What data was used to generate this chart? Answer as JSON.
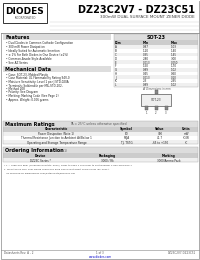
{
  "title_main": "DZ23C2V7 - DZ23C51",
  "subtitle": "300mW DUAL SURFACE MOUNT ZENER DIODE",
  "logo_text": "DIODES",
  "logo_sub": "INCORPORATED",
  "bg_color": "#ffffff",
  "features_title": "Features",
  "features": [
    "Dual Diodes in Common-Cathode Configuration",
    "300 mW Power Dissipation",
    "Ideally Suited for Automatic Insertion",
    "± 1% For Both Diodes in One Device (±2%)",
    "Common-Anode Style Available",
    "See AZ Series"
  ],
  "mech_title": "Mechanical Data",
  "mech_items": [
    "Case: SOT-23, Molded Plastic",
    "Case Material: UL Flammability Rating 94V-0",
    "Moisture Sensitivity: Level 1 per J-STD-020A",
    "Terminals: Solderable per MIL-STD-202,",
    "Method 208",
    "Polarity: See Diagram",
    "Marking: Marking Code (See Page 2)",
    "Approx. Weight: 0.006 grams"
  ],
  "ratings_title": "Maximum Ratings",
  "ratings_note": "TA = 25°C unless otherwise specified",
  "ratings_headers": [
    "Characteristic",
    "Symbol",
    "Value",
    "Units"
  ],
  "ratings_rows": [
    [
      "Power Dissipation (Note 1)",
      "PD",
      "300",
      "mW"
    ],
    [
      "Thermal Resistance Junction to Ambient At/Below 1",
      "RθJA",
      "41.7",
      "°C/W"
    ],
    [
      "Operating and Storage Temperature Range",
      "TJ, TSTG",
      "-65 to +150",
      "°C"
    ]
  ],
  "ordering_title": "Ordering Information",
  "ordering_note": "(Note 1)",
  "ordering_headers": [
    "Device",
    "Packaging",
    "Marking"
  ],
  "ordering_rows": [
    [
      "DZ23C Series *",
      "3000 / Rk",
      "3000/Ammo Pack"
    ]
  ],
  "table_title": "SOT-23",
  "table_headers": [
    "Dim",
    "Min",
    "Max"
  ],
  "table_rows": [
    [
      "A",
      "0.87",
      "1.03"
    ],
    [
      "B",
      "1.20",
      "1.40"
    ],
    [
      "C",
      "0.35",
      "1.45"
    ],
    [
      "D",
      "2.80",
      "3.00"
    ],
    [
      "E",
      "0.013",
      "0.050"
    ],
    [
      "F",
      "1.50",
      "1.70"
    ],
    [
      "G",
      "0.89",
      "1.02"
    ],
    [
      "H",
      "0.45",
      "0.60"
    ],
    [
      "J",
      "0.013",
      "0.10"
    ],
    [
      "K",
      "2.3",
      "2.65"
    ],
    [
      "L",
      "0.89",
      "1.02"
    ]
  ],
  "table_note": "All Dimensions in mm",
  "footer_left": "Datasheets Rev. A - 2",
  "footer_mid": "1 of 3",
  "footer_right": "DZ23C2V7-DZ23C51",
  "footer_url": "www.diodes.com",
  "note1": "* T = Tape and Reel (Minimum quantity: 3000). Refer to Page 4 and refer to Part Number 1-800-4DIODES-1",
  "note2": "1. Mounted on FR4, PCB, Board commend area pad layout effort comes from IPC-2221A",
  "note3": "   as specified by www.diodes.com/datasheets/ap02001.pdf",
  "section_bar_color": "#dddddd",
  "header_col_color": "#cccccc",
  "alt_row_color": "#f0f0f0"
}
